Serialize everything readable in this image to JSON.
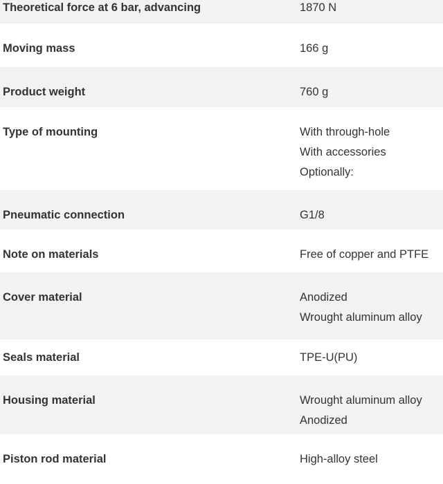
{
  "rows": [
    {
      "label": "Theoretical force at 6 bar, advancing",
      "values": [
        "1870 N"
      ]
    },
    {
      "label": "Moving mass",
      "values": [
        "166 g"
      ]
    },
    {
      "label": "Product weight",
      "values": [
        "760 g"
      ]
    },
    {
      "label": "Type of mounting",
      "values": [
        "With through-hole",
        "With accessories",
        "Optionally:"
      ]
    },
    {
      "label": "Pneumatic connection",
      "values": [
        "G1/8"
      ]
    },
    {
      "label": "Note on materials",
      "values": [
        "Free of copper and PTFE"
      ]
    },
    {
      "label": "Cover material",
      "values": [
        "Anodized",
        "Wrought aluminum alloy"
      ]
    },
    {
      "label": "Seals material",
      "values": [
        "TPE-U(PU)"
      ]
    },
    {
      "label": "Housing material",
      "values": [
        "Wrought aluminum alloy",
        "Anodized"
      ]
    },
    {
      "label": "Piston rod material",
      "values": [
        "High-alloy steel"
      ]
    }
  ]
}
